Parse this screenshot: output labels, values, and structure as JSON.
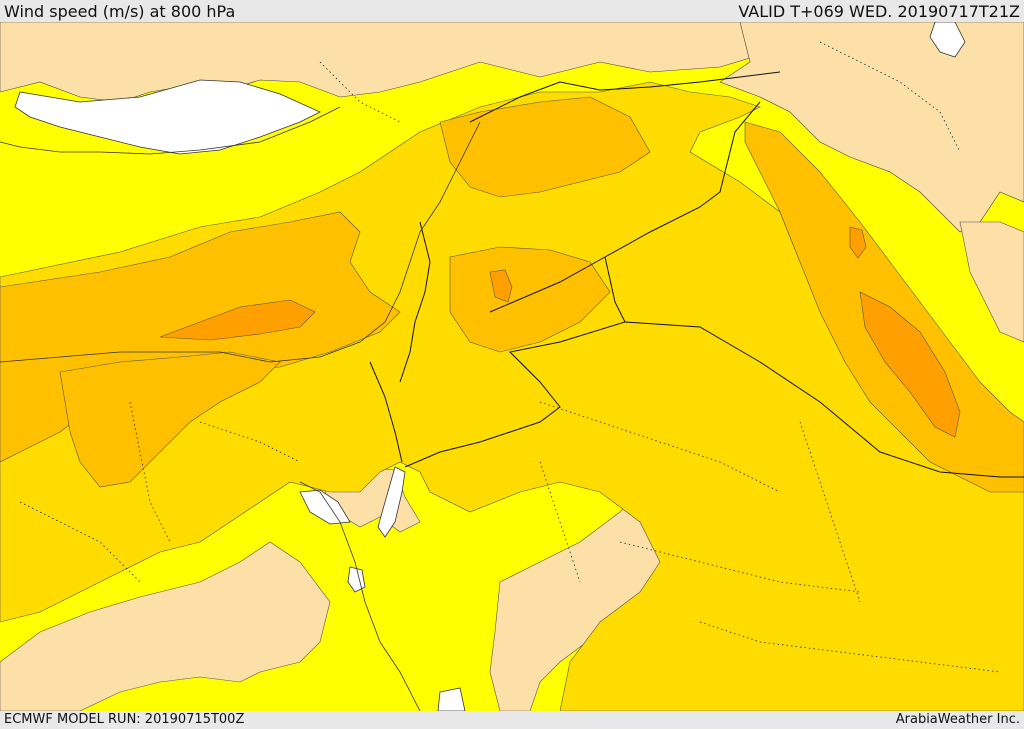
{
  "header": {
    "title": "Wind speed (m/s) at 800 hPa",
    "valid": "VALID T+069 WED. 20190717T21Z"
  },
  "footer": {
    "model_run": "ECMWF MODEL RUN: 20190715T00Z",
    "brand": "ArabiaWeather Inc."
  },
  "colors": {
    "water": "#ffffff",
    "band_0_5": "#fde0a8",
    "band_5_10": "#ffff00",
    "band_10_15": "#ffdc00",
    "band_15_20": "#ffc000",
    "band_20_25": "#ffa000",
    "coastline": "#333333",
    "border": "#111111"
  }
}
